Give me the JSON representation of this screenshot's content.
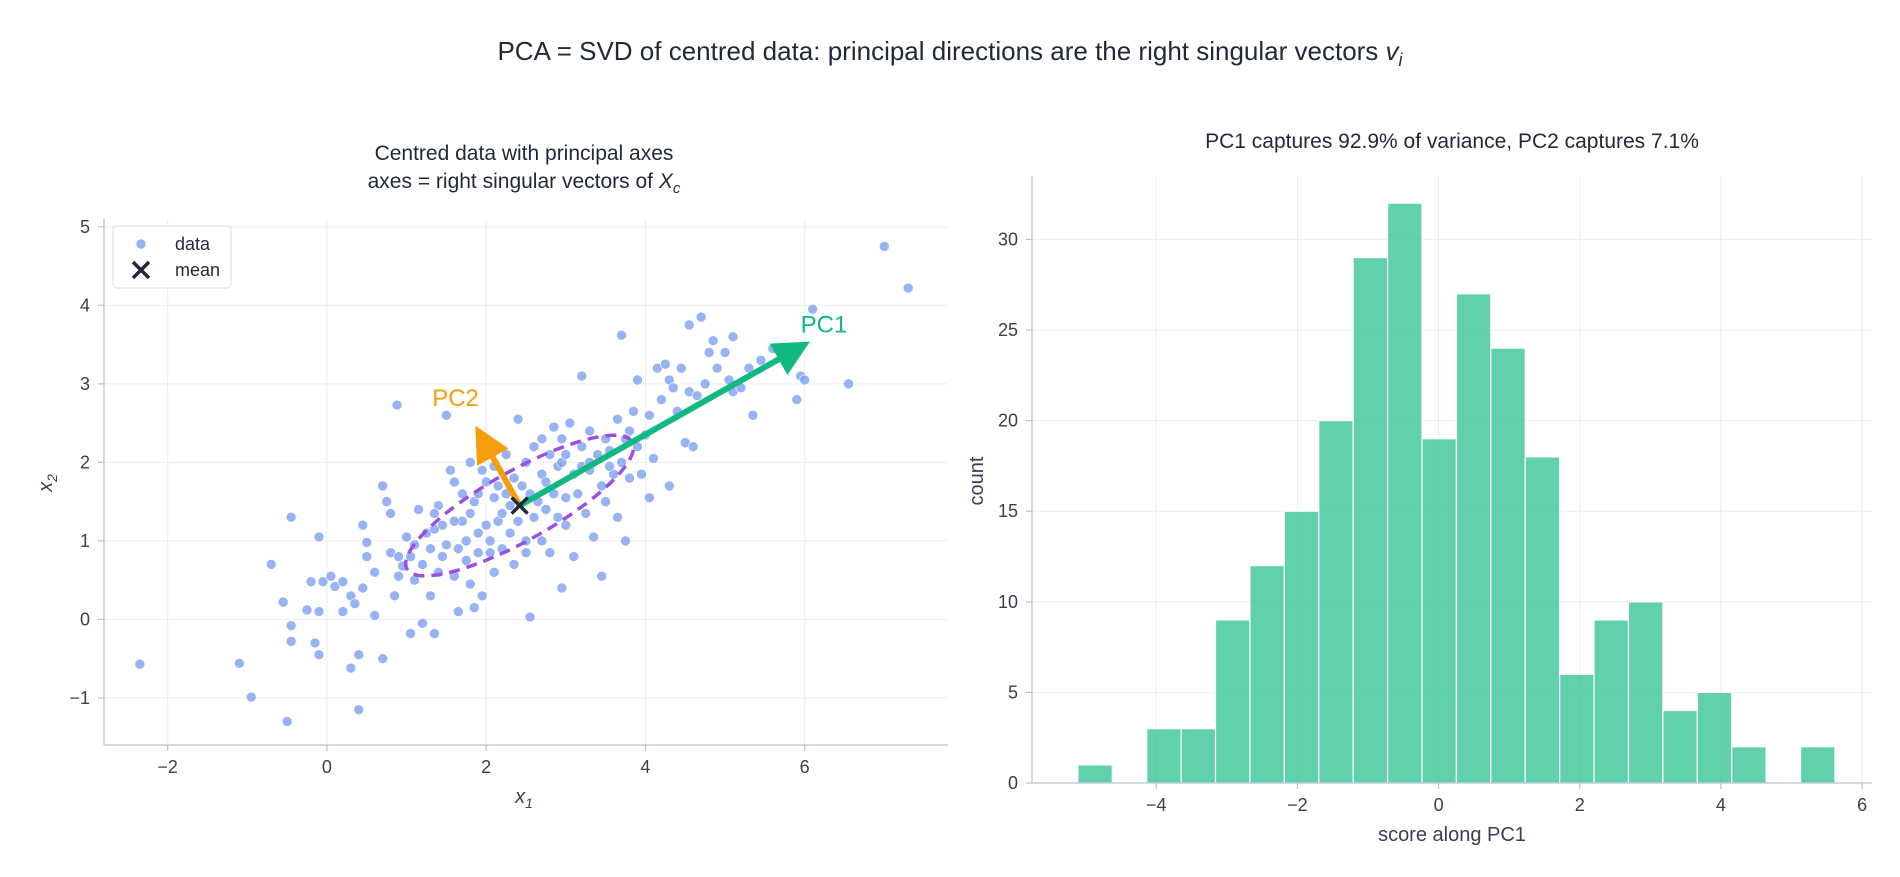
{
  "figure": {
    "suptitle_prefix": "PCA = SVD of centred data: principal directions are the right singular vectors ",
    "suptitle_symbol": "v",
    "suptitle_subscript": "i"
  },
  "colors": {
    "data_points": "#7b9ef0",
    "mean_marker": "#1f2937",
    "pc1": "#10b981",
    "pc2": "#f59e0b",
    "ellipse": "#9b51e0",
    "histogram": "#34c493",
    "grid": "#e9edf3",
    "spine": "#b8c2d0"
  },
  "chart_data": [
    {
      "type": "scatter",
      "title_line1": "Centred data with principal axes",
      "title_line2_prefix": "axes = right singular vectors of ",
      "title_line2_symbol": "X",
      "title_line2_subscript": "c",
      "xlabel_symbol": "x",
      "xlabel_subscript": "1",
      "ylabel_symbol": "x",
      "ylabel_subscript": "2",
      "xlim": [
        -2.8,
        7.8
      ],
      "ylim": [
        -1.6,
        5.1
      ],
      "xticks": [
        -2,
        0,
        2,
        4,
        6
      ],
      "yticks": [
        -1,
        0,
        1,
        2,
        3,
        4,
        5
      ],
      "grid": true,
      "legend": {
        "placement": "upper-left",
        "entries": [
          "data",
          "mean"
        ]
      },
      "mean": [
        2.42,
        1.45
      ],
      "pc1": {
        "label": "PC1",
        "end": [
          6.0,
          3.5
        ]
      },
      "pc2": {
        "label": "PC2",
        "end": [
          1.9,
          2.4
        ]
      },
      "ellipse": {
        "center": [
          2.42,
          1.45
        ],
        "semi_major": 1.63,
        "semi_minor": 0.44,
        "angle_deg": 29.8
      },
      "points": [
        [
          -2.35,
          -0.57
        ],
        [
          -1.1,
          -0.56
        ],
        [
          -0.95,
          -0.99
        ],
        [
          -0.5,
          -1.3
        ],
        [
          -0.45,
          -0.08
        ],
        [
          -0.45,
          -0.28
        ],
        [
          -0.55,
          0.22
        ],
        [
          -0.7,
          0.7
        ],
        [
          -0.45,
          1.3
        ],
        [
          -0.1,
          1.05
        ],
        [
          -0.05,
          0.48
        ],
        [
          -0.2,
          0.48
        ],
        [
          -0.1,
          0.1
        ],
        [
          -0.25,
          0.12
        ],
        [
          -0.15,
          -0.3
        ],
        [
          -0.1,
          -0.45
        ],
        [
          0.05,
          0.55
        ],
        [
          0.1,
          0.42
        ],
        [
          0.2,
          0.48
        ],
        [
          0.3,
          0.3
        ],
        [
          0.2,
          0.1
        ],
        [
          0.3,
          -0.62
        ],
        [
          0.4,
          -0.45
        ],
        [
          0.4,
          -1.15
        ],
        [
          0.45,
          0.4
        ],
        [
          0.35,
          0.2
        ],
        [
          0.45,
          1.2
        ],
        [
          0.5,
          0.8
        ],
        [
          0.6,
          0.05
        ],
        [
          0.5,
          0.98
        ],
        [
          0.7,
          -0.5
        ],
        [
          0.6,
          0.6
        ],
        [
          0.7,
          1.7
        ],
        [
          0.75,
          1.5
        ],
        [
          0.8,
          1.35
        ],
        [
          0.9,
          0.55
        ],
        [
          0.85,
          0.3
        ],
        [
          0.8,
          0.85
        ],
        [
          0.9,
          0.8
        ],
        [
          0.88,
          2.73
        ],
        [
          0.95,
          0.68
        ],
        [
          1.0,
          1.05
        ],
        [
          1.05,
          0.8
        ],
        [
          1.05,
          -0.18
        ],
        [
          1.1,
          0.95
        ],
        [
          1.1,
          0.5
        ],
        [
          1.15,
          1.4
        ],
        [
          1.2,
          -0.05
        ],
        [
          1.2,
          0.7
        ],
        [
          1.25,
          1.1
        ],
        [
          1.3,
          0.3
        ],
        [
          1.3,
          0.9
        ],
        [
          1.35,
          1.15
        ],
        [
          1.35,
          -0.18
        ],
        [
          1.4,
          1.45
        ],
        [
          1.4,
          0.6
        ],
        [
          1.45,
          0.8
        ],
        [
          1.45,
          1.2
        ],
        [
          1.5,
          0.95
        ],
        [
          1.5,
          2.6
        ],
        [
          1.55,
          1.9
        ],
        [
          1.6,
          0.55
        ],
        [
          1.6,
          1.75
        ],
        [
          1.65,
          0.9
        ],
        [
          1.65,
          0.1
        ],
        [
          1.7,
          1.25
        ],
        [
          1.7,
          1.6
        ],
        [
          1.75,
          0.75
        ],
        [
          1.75,
          1.0
        ],
        [
          1.8,
          0.45
        ],
        [
          1.8,
          1.35
        ],
        [
          1.8,
          2.0
        ],
        [
          1.85,
          0.15
        ],
        [
          1.85,
          1.5
        ],
        [
          1.9,
          1.1
        ],
        [
          1.9,
          0.85
        ],
        [
          1.9,
          1.6
        ],
        [
          1.95,
          1.9
        ],
        [
          1.95,
          0.3
        ],
        [
          2.0,
          1.2
        ],
        [
          2.0,
          1.75
        ],
        [
          2.05,
          1.0
        ],
        [
          2.05,
          0.85
        ],
        [
          2.1,
          1.55
        ],
        [
          2.1,
          1.95
        ],
        [
          2.1,
          0.6
        ],
        [
          2.15,
          2.2
        ],
        [
          2.15,
          1.25
        ],
        [
          2.2,
          1.35
        ],
        [
          2.2,
          0.9
        ],
        [
          2.25,
          1.6
        ],
        [
          2.25,
          2.1
        ],
        [
          2.3,
          1.1
        ],
        [
          2.3,
          1.45
        ],
        [
          2.35,
          1.8
        ],
        [
          2.35,
          0.7
        ],
        [
          2.4,
          2.55
        ],
        [
          2.4,
          1.25
        ],
        [
          2.45,
          1.7
        ],
        [
          2.5,
          1.0
        ],
        [
          2.5,
          2.0
        ],
        [
          2.5,
          0.85
        ],
        [
          2.55,
          0.03
        ],
        [
          2.55,
          1.6
        ],
        [
          2.6,
          2.2
        ],
        [
          2.6,
          1.3
        ],
        [
          2.65,
          1.5
        ],
        [
          2.7,
          1.85
        ],
        [
          2.7,
          2.3
        ],
        [
          2.7,
          1.0
        ],
        [
          2.75,
          1.75
        ],
        [
          2.8,
          2.1
        ],
        [
          2.8,
          0.85
        ],
        [
          2.85,
          1.6
        ],
        [
          2.85,
          2.45
        ],
        [
          2.9,
          1.95
        ],
        [
          2.9,
          1.3
        ],
        [
          2.95,
          2.0
        ],
        [
          2.95,
          0.4
        ],
        [
          3.0,
          1.55
        ],
        [
          3.0,
          2.1
        ],
        [
          3.0,
          1.2
        ],
        [
          3.05,
          2.5
        ],
        [
          3.1,
          1.85
        ],
        [
          3.1,
          0.8
        ],
        [
          3.15,
          1.6
        ],
        [
          3.2,
          3.1
        ],
        [
          3.2,
          2.2
        ],
        [
          3.2,
          1.95
        ],
        [
          3.25,
          1.35
        ],
        [
          3.3,
          2.4
        ],
        [
          3.3,
          1.9
        ],
        [
          3.35,
          1.05
        ],
        [
          3.4,
          2.1
        ],
        [
          3.45,
          1.7
        ],
        [
          3.45,
          0.55
        ],
        [
          3.5,
          2.3
        ],
        [
          3.5,
          1.5
        ],
        [
          3.55,
          2.15
        ],
        [
          3.6,
          1.85
        ],
        [
          3.65,
          2.55
        ],
        [
          3.65,
          1.3
        ],
        [
          3.7,
          3.62
        ],
        [
          3.7,
          2.0
        ],
        [
          3.75,
          1.0
        ],
        [
          3.8,
          2.4
        ],
        [
          3.8,
          1.8
        ],
        [
          3.85,
          2.65
        ],
        [
          3.9,
          3.05
        ],
        [
          3.9,
          2.2
        ],
        [
          3.95,
          1.85
        ],
        [
          4.0,
          2.35
        ],
        [
          4.05,
          1.55
        ],
        [
          4.1,
          2.05
        ],
        [
          4.15,
          3.2
        ],
        [
          4.2,
          2.8
        ],
        [
          4.25,
          3.25
        ],
        [
          4.3,
          1.7
        ],
        [
          4.3,
          3.05
        ],
        [
          4.35,
          2.95
        ],
        [
          4.4,
          2.65
        ],
        [
          4.45,
          3.2
        ],
        [
          4.5,
          2.25
        ],
        [
          4.55,
          3.75
        ],
        [
          4.55,
          2.9
        ],
        [
          4.6,
          2.2
        ],
        [
          4.65,
          2.85
        ],
        [
          4.7,
          3.85
        ],
        [
          4.75,
          3.0
        ],
        [
          4.8,
          3.4
        ],
        [
          4.85,
          3.55
        ],
        [
          4.9,
          3.2
        ],
        [
          5.0,
          3.4
        ],
        [
          5.05,
          3.05
        ],
        [
          5.1,
          2.9
        ],
        [
          5.1,
          3.6
        ],
        [
          5.2,
          2.95
        ],
        [
          5.3,
          3.2
        ],
        [
          5.35,
          2.6
        ],
        [
          5.45,
          3.3
        ],
        [
          5.6,
          3.45
        ],
        [
          5.7,
          3.38
        ],
        [
          5.9,
          2.8
        ],
        [
          5.95,
          3.1
        ],
        [
          6.0,
          3.05
        ],
        [
          6.1,
          3.95
        ],
        [
          6.55,
          3.0
        ],
        [
          7.0,
          4.75
        ],
        [
          7.3,
          4.22
        ],
        [
          3.3,
          2.0
        ],
        [
          2.75,
          1.4
        ],
        [
          1.6,
          1.25
        ],
        [
          2.15,
          1.7
        ],
        [
          3.55,
          1.95
        ],
        [
          1.35,
          1.35
        ],
        [
          2.95,
          2.3
        ],
        [
          4.05,
          2.6
        ],
        [
          3.75,
          2.3
        ]
      ]
    },
    {
      "type": "bar",
      "subtype": "histogram",
      "title": "PC1 captures 92.9% of variance, PC2 captures 7.1%",
      "xlabel": "score along PC1",
      "ylabel": "count",
      "xlim": [
        -5.76,
        6.14
      ],
      "ylim": [
        0,
        33.5
      ],
      "xticks": [
        -4,
        -2,
        0,
        2,
        4,
        6
      ],
      "yticks": [
        0,
        5,
        10,
        15,
        20,
        25,
        30
      ],
      "grid": true,
      "bin_start": -5.11,
      "bin_width": 0.4875,
      "counts": [
        1,
        0,
        3,
        3,
        9,
        12,
        15,
        20,
        29,
        32,
        19,
        27,
        24,
        18,
        6,
        9,
        10,
        4,
        5,
        2,
        0,
        2
      ]
    }
  ]
}
